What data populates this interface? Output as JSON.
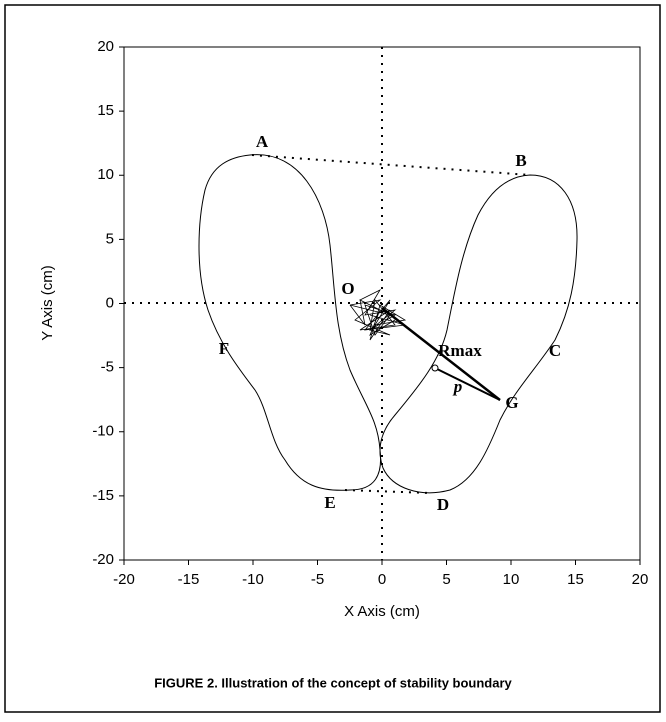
{
  "chart_data": {
    "type": "line",
    "caption": "FIGURE 2. Illustration of the concept of stability boundary",
    "xlabel": "X Axis (cm)",
    "ylabel": "Y Axis (cm)",
    "xlim": [
      -20,
      20
    ],
    "ylim": [
      -20,
      20
    ],
    "xticks": [
      -20,
      -15,
      -10,
      -5,
      0,
      5,
      10,
      15,
      20
    ],
    "yticks": [
      -20,
      -15,
      -10,
      -5,
      0,
      5,
      10,
      15,
      20
    ],
    "annotations": [
      "A",
      "B",
      "C",
      "D",
      "E",
      "F",
      "G",
      "O",
      "Rmax",
      "p"
    ]
  }
}
